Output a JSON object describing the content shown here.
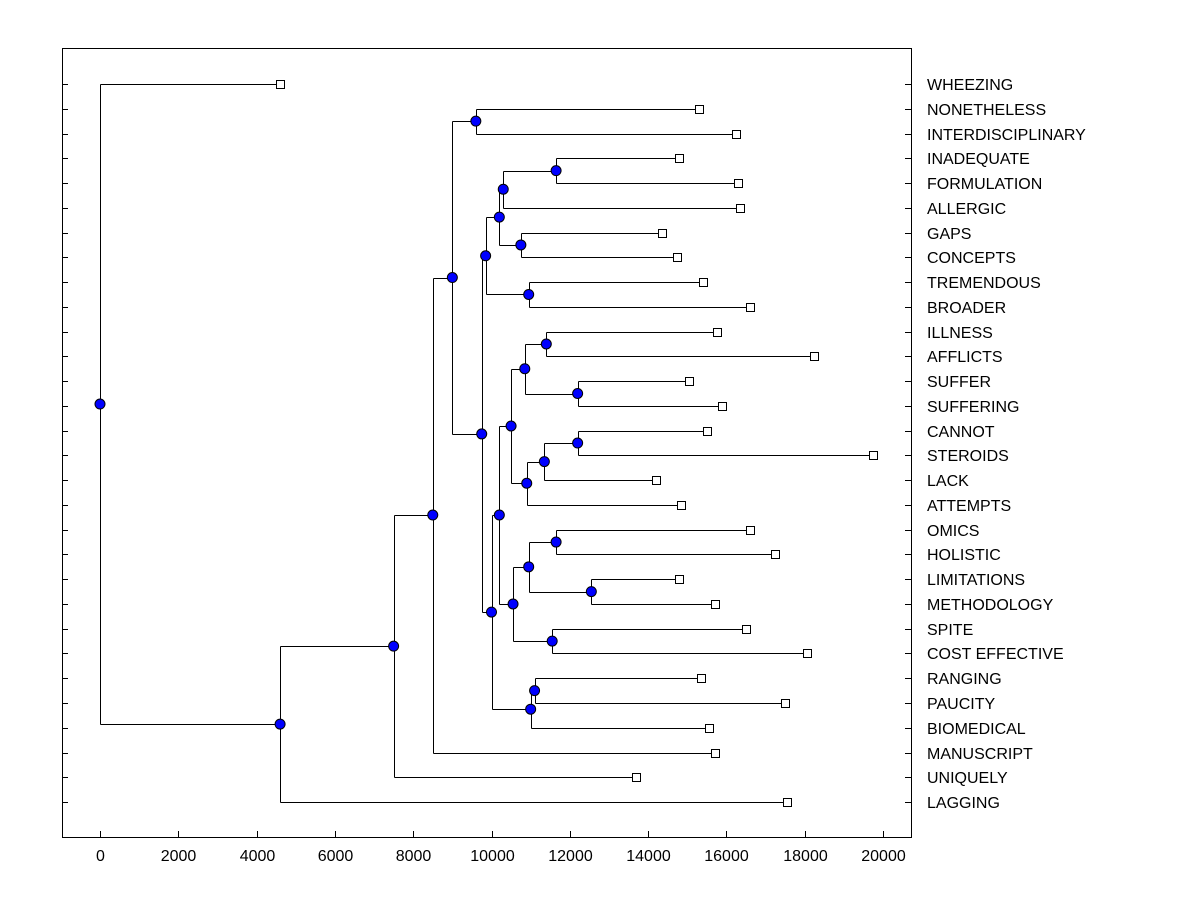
{
  "chart_data": {
    "type": "dendrogram",
    "orientation": "horizontal",
    "title": "",
    "xlabel": "",
    "ylabel": "",
    "xlim": [
      -1000,
      20700
    ],
    "xticks": [
      0,
      2000,
      4000,
      6000,
      8000,
      10000,
      12000,
      14000,
      16000,
      18000,
      20000
    ],
    "grid": false,
    "leaves": [
      {
        "label": "WHEEZING",
        "value": 4600
      },
      {
        "label": "NONETHELESS",
        "value": 15300
      },
      {
        "label": "INTERDISCIPLINARY",
        "value": 16250
      },
      {
        "label": "INADEQUATE",
        "value": 14800
      },
      {
        "label": "FORMULATION",
        "value": 16300
      },
      {
        "label": "ALLERGIC",
        "value": 16350
      },
      {
        "label": "GAPS",
        "value": 14350
      },
      {
        "label": "CONCEPTS",
        "value": 14750
      },
      {
        "label": "TREMENDOUS",
        "value": 15400
      },
      {
        "label": "BROADER",
        "value": 16600
      },
      {
        "label": "ILLNESS",
        "value": 15750
      },
      {
        "label": "AFFLICTS",
        "value": 18250
      },
      {
        "label": "SUFFER",
        "value": 15050
      },
      {
        "label": "SUFFERING",
        "value": 15900
      },
      {
        "label": "CANNOT",
        "value": 15500
      },
      {
        "label": "STEROIDS",
        "value": 19750
      },
      {
        "label": "LACK",
        "value": 14200
      },
      {
        "label": "ATTEMPTS",
        "value": 14850
      },
      {
        "label": "OMICS",
        "value": 16600
      },
      {
        "label": "HOLISTIC",
        "value": 17250
      },
      {
        "label": "LIMITATIONS",
        "value": 14800
      },
      {
        "label": "METHODOLOGY",
        "value": 15700
      },
      {
        "label": "SPITE",
        "value": 16500
      },
      {
        "label": "COST EFFECTIVE",
        "value": 18050
      },
      {
        "label": "RANGING",
        "value": 15350
      },
      {
        "label": "PAUCITY",
        "value": 17500
      },
      {
        "label": "BIOMEDICAL",
        "value": 15550
      },
      {
        "label": "MANUSCRIPT",
        "value": 15700
      },
      {
        "label": "UNIQUELY",
        "value": 13700
      },
      {
        "label": "LAGGING",
        "value": 17550
      }
    ],
    "merges": [
      {
        "id": "N1",
        "value": 9600,
        "children": [
          1,
          2
        ]
      },
      {
        "id": "N2",
        "value": 11650,
        "children": [
          3,
          4
        ]
      },
      {
        "id": "N3",
        "value": 10300,
        "children": [
          "N2",
          5
        ]
      },
      {
        "id": "N4",
        "value": 10750,
        "children": [
          6,
          7
        ]
      },
      {
        "id": "N5",
        "value": 10200,
        "children": [
          "N3",
          "N4"
        ]
      },
      {
        "id": "N6",
        "value": 10950,
        "children": [
          8,
          9
        ]
      },
      {
        "id": "N7",
        "value": 9850,
        "children": [
          "N5",
          "N6"
        ]
      },
      {
        "id": "N8",
        "value": 11400,
        "children": [
          10,
          11
        ]
      },
      {
        "id": "N9",
        "value": 12200,
        "children": [
          12,
          13
        ]
      },
      {
        "id": "N10",
        "value": 10850,
        "children": [
          "N8",
          "N9"
        ]
      },
      {
        "id": "N11",
        "value": 12200,
        "children": [
          14,
          15
        ]
      },
      {
        "id": "N12",
        "value": 11350,
        "children": [
          "N11",
          16
        ]
      },
      {
        "id": "N13",
        "value": 10900,
        "children": [
          "N12",
          17
        ]
      },
      {
        "id": "N14",
        "value": 10500,
        "children": [
          "N10",
          "N13"
        ]
      },
      {
        "id": "N15",
        "value": 11650,
        "children": [
          18,
          19
        ]
      },
      {
        "id": "N16",
        "value": 12550,
        "children": [
          20,
          21
        ]
      },
      {
        "id": "N17",
        "value": 10950,
        "children": [
          "N15",
          "N16"
        ]
      },
      {
        "id": "N18",
        "value": 11550,
        "children": [
          22,
          23
        ]
      },
      {
        "id": "N19",
        "value": 10550,
        "children": [
          "N17",
          "N18"
        ]
      },
      {
        "id": "N20",
        "value": 10200,
        "children": [
          "N14",
          "N19"
        ]
      },
      {
        "id": "N21",
        "value": 11100,
        "children": [
          24,
          25
        ]
      },
      {
        "id": "N22",
        "value": 11000,
        "children": [
          "N21",
          26
        ]
      },
      {
        "id": "N23",
        "value": 10000,
        "children": [
          "N20",
          "N22"
        ]
      },
      {
        "id": "N24",
        "value": 9750,
        "children": [
          "N7",
          "N23"
        ]
      },
      {
        "id": "N25",
        "value": 9000,
        "children": [
          "N1",
          "N24"
        ]
      },
      {
        "id": "N26",
        "value": 8500,
        "children": [
          "N25",
          27
        ]
      },
      {
        "id": "N27",
        "value": 7500,
        "children": [
          "N26",
          28
        ]
      },
      {
        "id": "N28",
        "value": 4600,
        "children": [
          "N27",
          29
        ]
      },
      {
        "id": "N29",
        "value": 0,
        "children": [
          0,
          "N28"
        ]
      }
    ],
    "colors": {
      "node_fill": "#0000ff",
      "leaf_fill": "#ffffff",
      "line": "#000000"
    }
  }
}
